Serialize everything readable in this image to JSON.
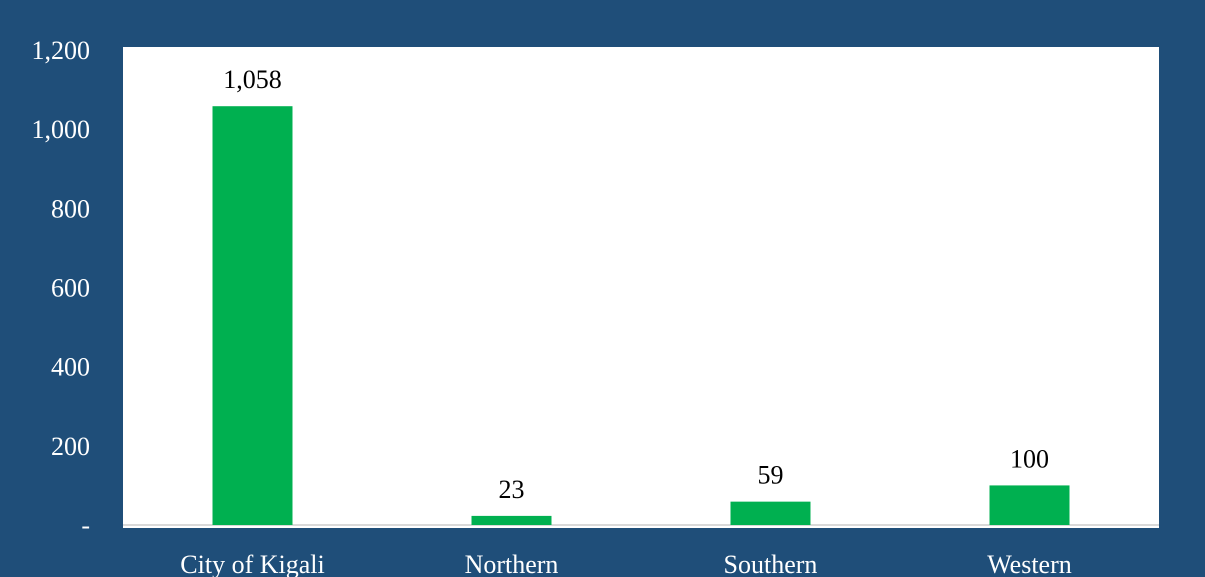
{
  "chart_data": {
    "type": "bar",
    "title": "",
    "xlabel": "",
    "ylabel": "",
    "categories": [
      "City of Kigali",
      "Northern",
      "Southern",
      "Western"
    ],
    "values": [
      1058,
      23,
      59,
      100
    ],
    "data_labels": [
      "1,058",
      "23",
      "59",
      "100"
    ],
    "ylim": [
      0,
      1200
    ],
    "yticks": [
      0,
      200,
      400,
      600,
      800,
      1000,
      1200
    ],
    "ytick_labels": [
      "-",
      "200",
      "400",
      "600",
      "800",
      "1,000",
      "1,200"
    ],
    "grid": false,
    "legend": "none",
    "colors": {
      "background": "#1f4e79",
      "plot_area": "#ffffff",
      "bar": "#00b050",
      "axis_text": "#ffffff",
      "data_label": "#000000"
    }
  }
}
